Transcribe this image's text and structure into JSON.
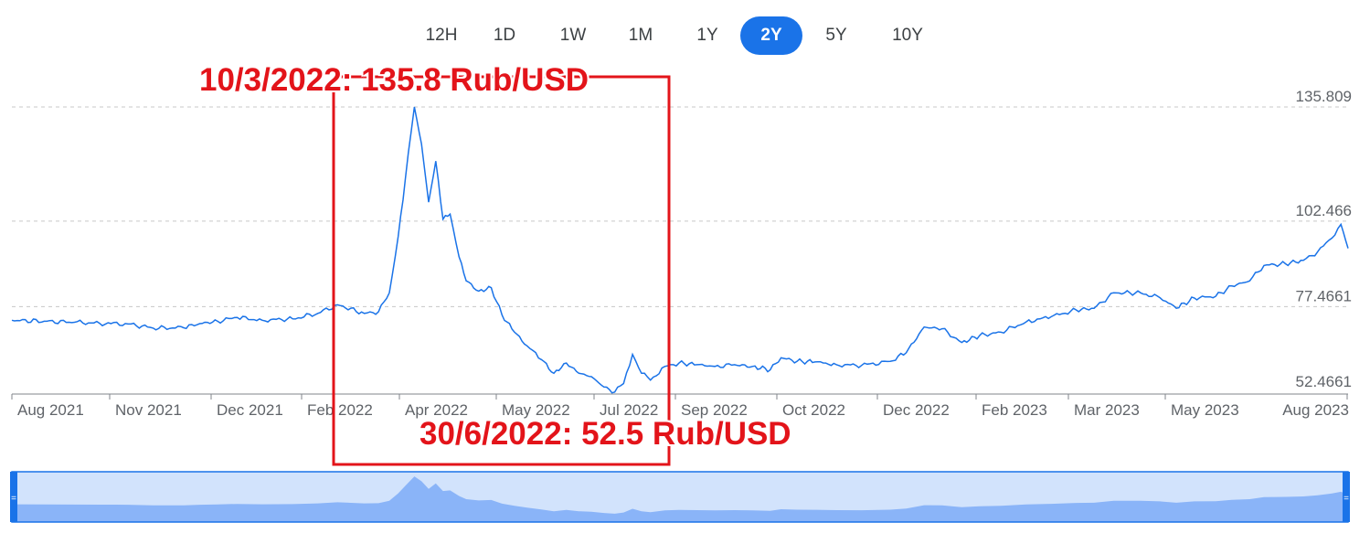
{
  "range_tabs": [
    {
      "label": "12H",
      "active": false
    },
    {
      "label": "1D",
      "active": false
    },
    {
      "label": "1W",
      "active": false
    },
    {
      "label": "1M",
      "active": false
    },
    {
      "label": "1Y",
      "active": false
    },
    {
      "label": "2Y",
      "active": true
    },
    {
      "label": "5Y",
      "active": false
    },
    {
      "label": "10Y",
      "active": false
    }
  ],
  "annotations": {
    "peak": "10/3/2022: 135.8 Rub/USD",
    "trough": "30/6/2022: 52.5 Rub/USD"
  },
  "colors": {
    "line": "#1a73e8",
    "accent": "#1a73e8",
    "annotation": "#e3141a",
    "navigator_fill": "#a8c7fa"
  },
  "chart_data": {
    "type": "line",
    "title": "",
    "xlabel": "",
    "ylabel": "",
    "x_ticks": [
      "Aug 2021",
      "Nov 2021",
      "Dec 2021",
      "Feb 2022",
      "Apr 2022",
      "May 2022",
      "Jul 2022",
      "Sep 2022",
      "Oct 2022",
      "Dec 2022",
      "Feb 2023",
      "Mar 2023",
      "May 2023",
      "Aug 2023"
    ],
    "y_ticks": [
      135.809,
      102.466,
      77.4661,
      52.4661
    ],
    "ylim": [
      50.6,
      140
    ],
    "xlim": [
      "2021-07-28",
      "2023-08-14"
    ],
    "grid": true,
    "series": [
      {
        "values": [
          [
            "2021-07-28",
            73.5
          ],
          [
            "2021-08-15",
            73.2
          ],
          [
            "2021-09-01",
            72.9
          ],
          [
            "2021-09-15",
            72.6
          ],
          [
            "2021-10-01",
            72.4
          ],
          [
            "2021-10-15",
            71.2
          ],
          [
            "2021-11-01",
            71.3
          ],
          [
            "2021-11-10",
            72.5
          ],
          [
            "2021-11-20",
            73.2
          ],
          [
            "2021-12-01",
            74.3
          ],
          [
            "2021-12-15",
            73.5
          ],
          [
            "2022-01-01",
            73.9
          ],
          [
            "2022-01-15",
            75.5
          ],
          [
            "2022-01-26",
            78.0
          ],
          [
            "2022-02-10",
            75.5
          ],
          [
            "2022-02-18",
            76.0
          ],
          [
            "2022-02-24",
            81.5
          ],
          [
            "2022-03-01",
            98.0
          ],
          [
            "2022-03-05",
            115.0
          ],
          [
            "2022-03-10",
            135.8
          ],
          [
            "2022-03-14",
            125.0
          ],
          [
            "2022-03-18",
            108.0
          ],
          [
            "2022-03-22",
            120.0
          ],
          [
            "2022-03-26",
            103.0
          ],
          [
            "2022-03-30",
            104.5
          ],
          [
            "2022-04-04",
            92.0
          ],
          [
            "2022-04-08",
            85.0
          ],
          [
            "2022-04-15",
            82.0
          ],
          [
            "2022-04-22",
            83.0
          ],
          [
            "2022-04-28",
            75.0
          ],
          [
            "2022-05-05",
            70.0
          ],
          [
            "2022-05-12",
            66.0
          ],
          [
            "2022-05-20",
            62.0
          ],
          [
            "2022-05-27",
            58.0
          ],
          [
            "2022-06-03",
            61.0
          ],
          [
            "2022-06-10",
            58.0
          ],
          [
            "2022-06-17",
            57.0
          ],
          [
            "2022-06-24",
            54.0
          ],
          [
            "2022-06-30",
            52.5
          ],
          [
            "2022-07-05",
            55.0
          ],
          [
            "2022-07-10",
            63.5
          ],
          [
            "2022-07-15",
            58.0
          ],
          [
            "2022-07-20",
            56.0
          ],
          [
            "2022-07-28",
            60.0
          ],
          [
            "2022-08-05",
            61.0
          ],
          [
            "2022-08-15",
            60.5
          ],
          [
            "2022-08-25",
            60.0
          ],
          [
            "2022-09-05",
            60.5
          ],
          [
            "2022-09-15",
            60.0
          ],
          [
            "2022-09-25",
            59.0
          ],
          [
            "2022-10-01",
            62.5
          ],
          [
            "2022-10-10",
            61.5
          ],
          [
            "2022-10-20",
            61.3
          ],
          [
            "2022-11-01",
            60.5
          ],
          [
            "2022-11-15",
            60.3
          ],
          [
            "2022-12-01",
            61.5
          ],
          [
            "2022-12-10",
            64.0
          ],
          [
            "2022-12-20",
            71.5
          ],
          [
            "2022-12-30",
            71.0
          ],
          [
            "2023-01-10",
            67.0
          ],
          [
            "2023-01-20",
            69.0
          ],
          [
            "2023-02-01",
            70.0
          ],
          [
            "2023-02-15",
            73.0
          ],
          [
            "2023-03-01",
            74.5
          ],
          [
            "2023-03-15",
            76.5
          ],
          [
            "2023-03-25",
            77.0
          ],
          [
            "2023-04-05",
            81.5
          ],
          [
            "2023-04-20",
            81.5
          ],
          [
            "2023-05-01",
            80.0
          ],
          [
            "2023-05-10",
            77.0
          ],
          [
            "2023-05-20",
            80.0
          ],
          [
            "2023-06-01",
            80.5
          ],
          [
            "2023-06-10",
            83.5
          ],
          [
            "2023-06-20",
            85.0
          ],
          [
            "2023-06-28",
            89.5
          ],
          [
            "2023-07-10",
            90.0
          ],
          [
            "2023-07-20",
            91.0
          ],
          [
            "2023-07-28",
            93.5
          ],
          [
            "2023-08-05",
            97.5
          ],
          [
            "2023-08-10",
            101.5
          ],
          [
            "2023-08-14",
            94.5
          ]
        ]
      }
    ]
  }
}
